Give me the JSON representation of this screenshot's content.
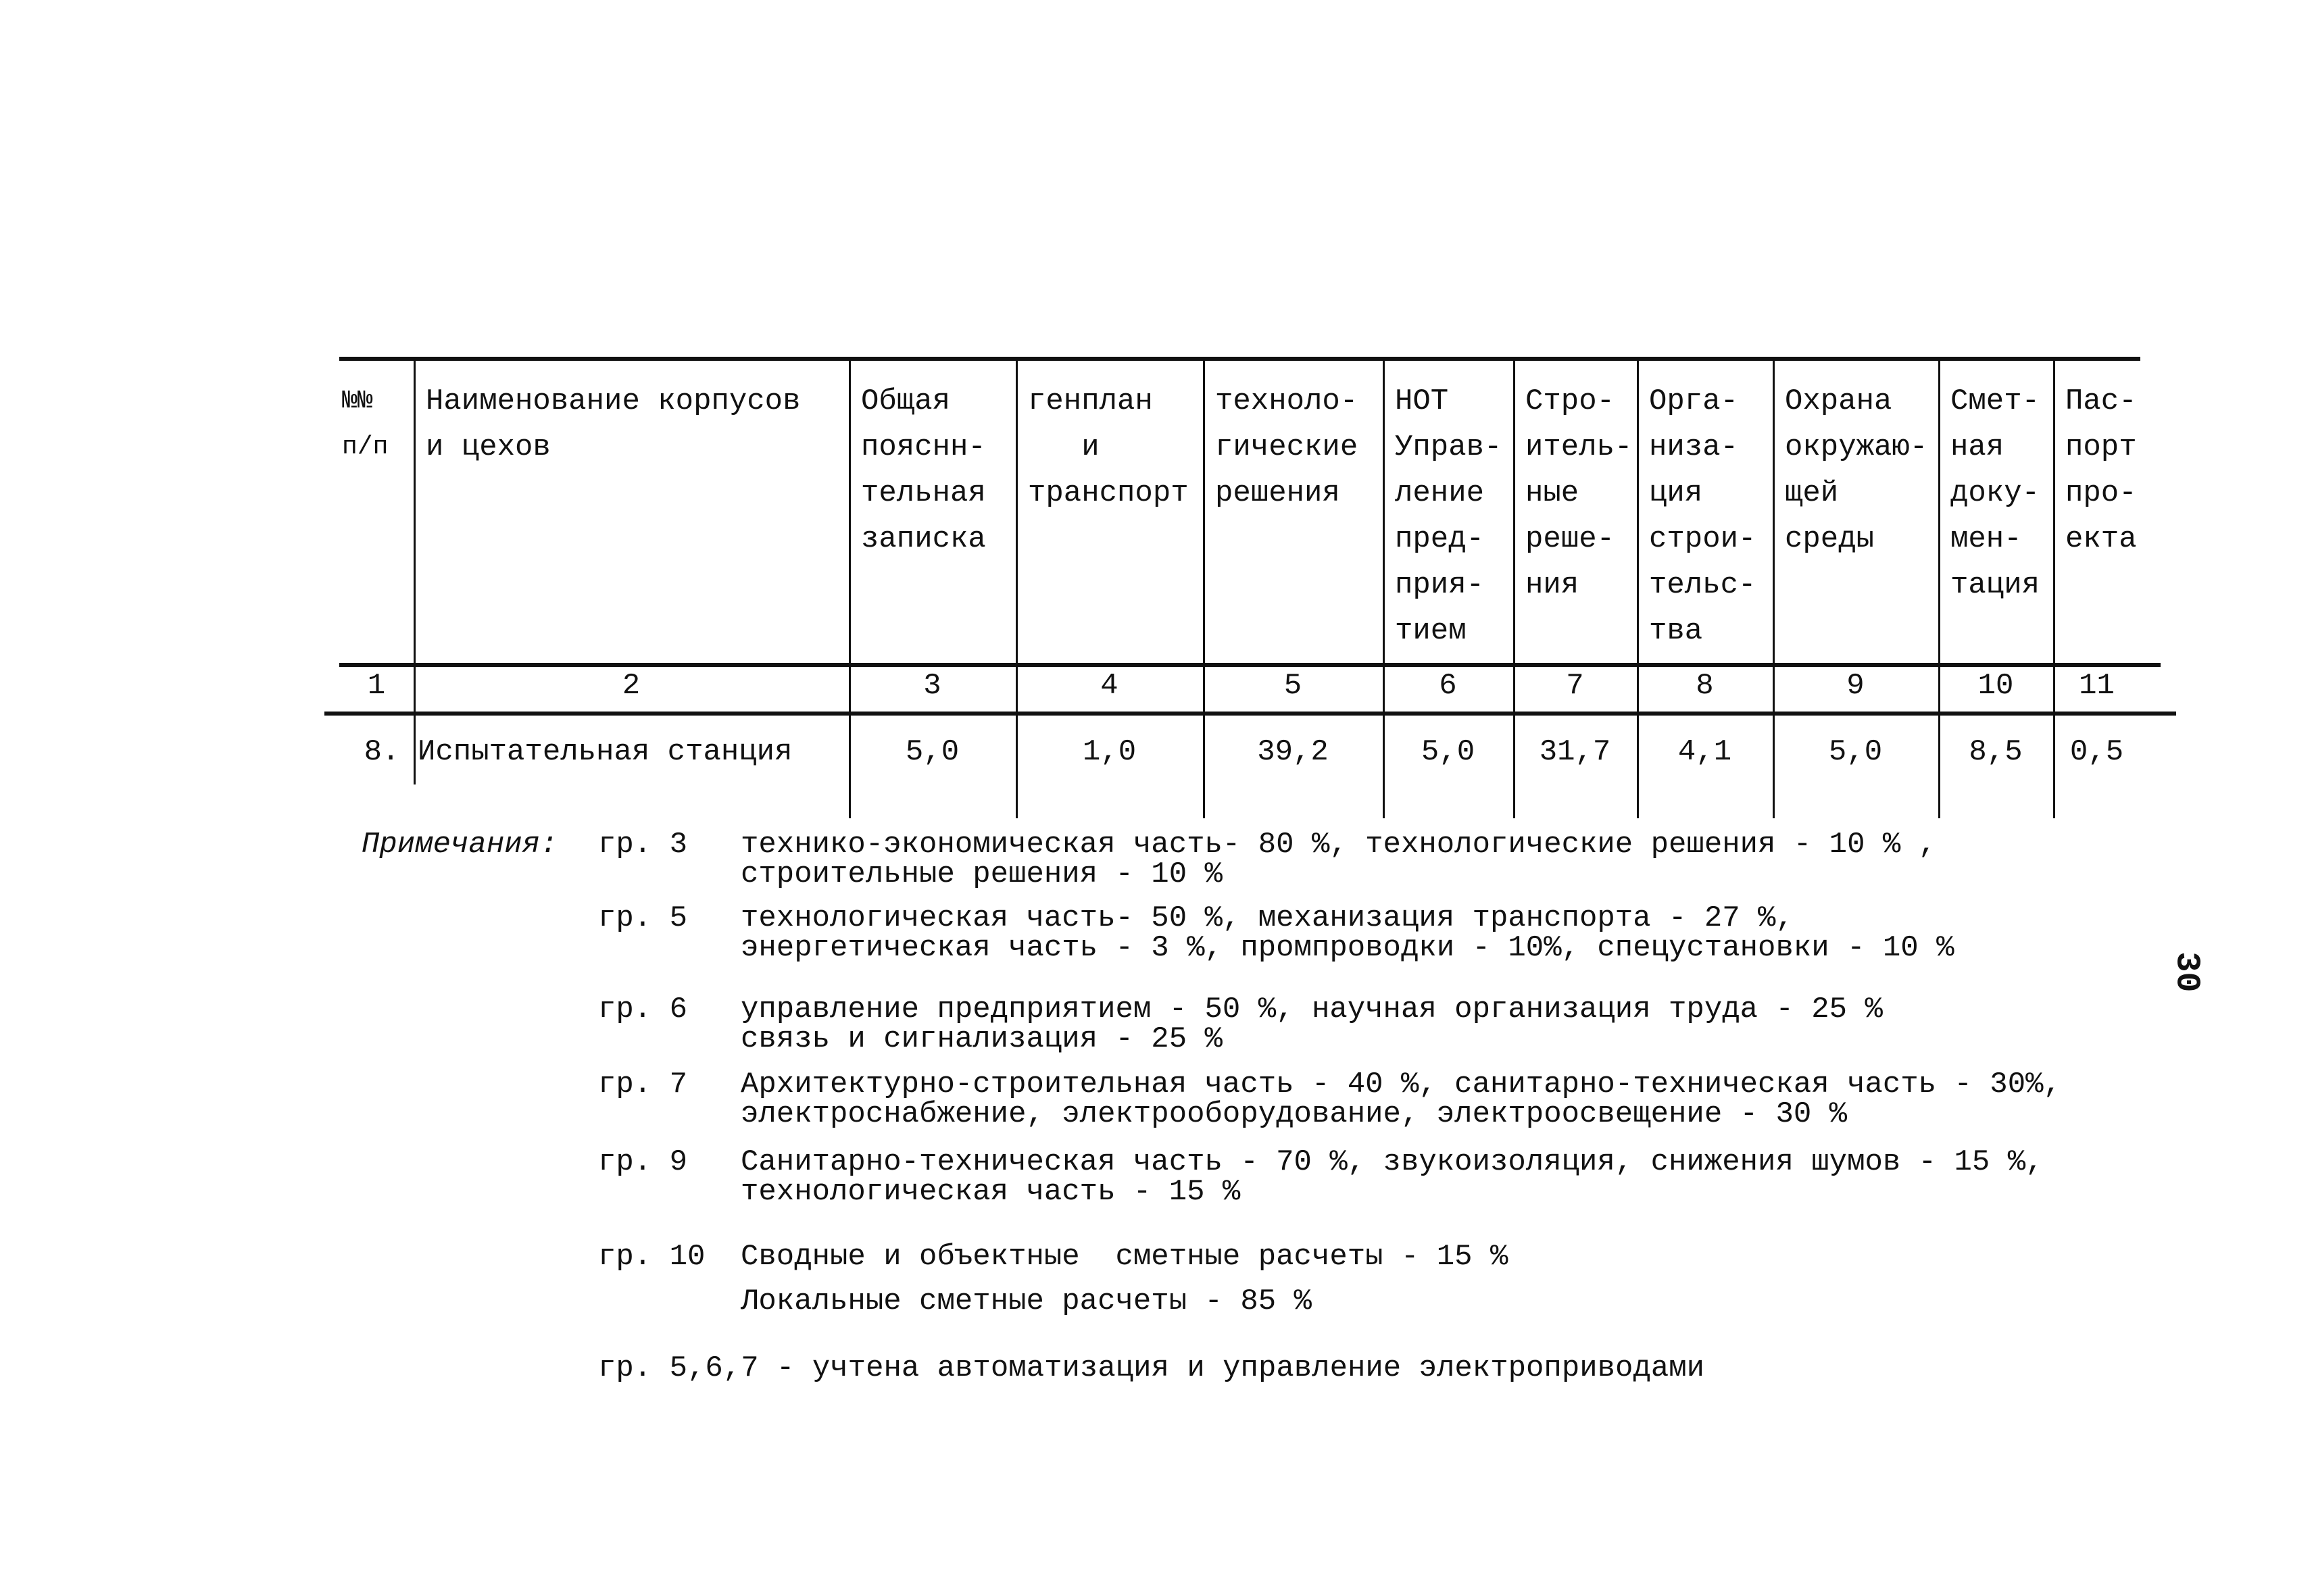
{
  "table": {
    "headers": [
      "№№\nп/п",
      "Наименование корпусов\nи цехов",
      "Общая\nпояснн-\nтельная\nзаписка",
      "генплан\n   и\nтранспорт",
      "техноло-\nгические\nрешения",
      "НОТ\nУправ-\nление\nпред-\nприя-\nтием",
      "Стро-\nитель-\nные\nреше-\nния",
      "Орга-\nниза-\nция\nстрои-\nтельс-\nтва",
      "Охрана\nокружаю-\nщей\nсреды",
      "Смет-\nная\nдоку-\nмен-\nтация",
      "Пас-\nпорт\nпро-\nекта"
    ],
    "column_numbers": [
      "1",
      "2",
      "3",
      "4",
      "5",
      "6",
      "7",
      "8",
      "9",
      "10",
      "11"
    ],
    "rows": [
      [
        "8.",
        "Испытательная станция",
        "5,0",
        "1,0",
        "39,2",
        "5,0",
        "31,7",
        "4,1",
        "5,0",
        "8,5",
        "0,5"
      ]
    ]
  },
  "notes": {
    "label": "Примечания:",
    "items": [
      {
        "group": "гр. 3",
        "lines": [
          "технико-экономическая часть- 80 %, технологические решения - 10 % ,",
          "строительные решения - 10 %"
        ]
      },
      {
        "group": "гр. 5",
        "lines": [
          "технологическая часть- 50 %, механизация транспорта - 27 %,",
          "энергетическая часть - 3 %, промпроводки - 10%, спецустановки - 10 %"
        ]
      },
      {
        "group": "гр. 6",
        "lines": [
          "управление предприятием - 50 %, научная организация труда - 25 %",
          "связь и сигнализация - 25 %"
        ]
      },
      {
        "group": "гр. 7",
        "lines": [
          "Архитектурно-строительная часть - 40 %, санитарно-техническая часть - 30%,",
          "электроснабжение, электрооборудование, электроосвещение - 30 %"
        ]
      },
      {
        "group": "гр. 9",
        "lines": [
          "Санитарно-техническая часть - 70 %, звукоизоляция, снижения шумов - 15 %,",
          "технологическая часть - 15 %"
        ]
      },
      {
        "group": "гр. 10",
        "lines": [
          "Сводные и объектные  сметные расчеты - 15 %",
          "Локальные сметные расчеты - 85 %"
        ]
      }
    ],
    "footer": "гр. 5,6,7 - учтена автоматизация и управление электроприводами"
  },
  "page_number": "30"
}
